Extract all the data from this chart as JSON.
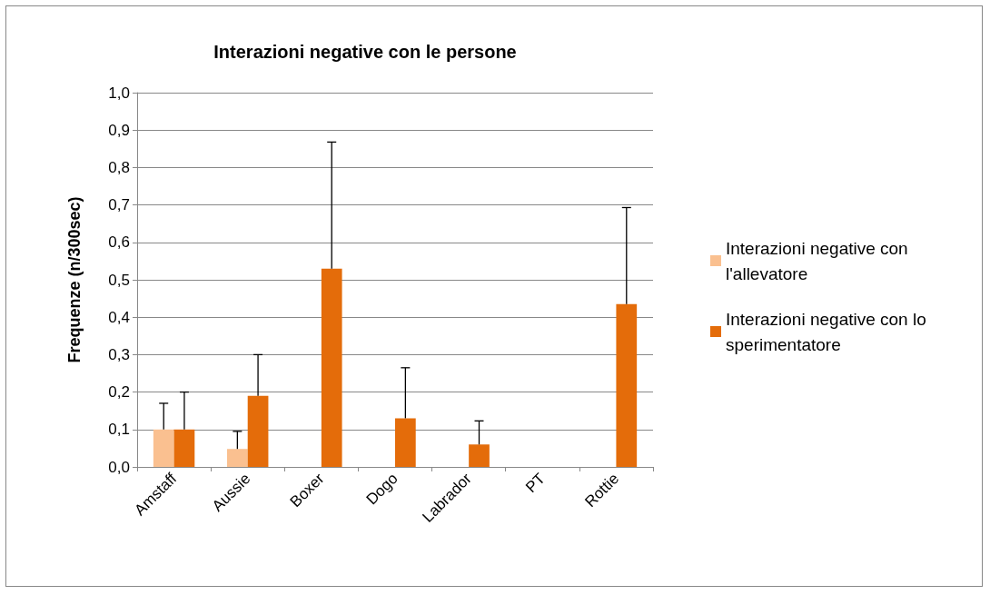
{
  "chart_data": {
    "type": "bar",
    "title": "Interazioni negative con le persone",
    "ylabel": "Frequenze (n/300sec)",
    "categories": [
      "Amstaff",
      "Aussie",
      "Boxer",
      "Dogo",
      "Labrador",
      "PT",
      "Rottie"
    ],
    "series": [
      {
        "name": "Interazioni negative con l'allevatore",
        "color": "#fac090",
        "values": [
          0.1,
          0.048,
          0,
          0,
          0,
          0,
          0
        ],
        "errors": [
          [
            0.1,
            0.17
          ],
          [
            0.048,
            0.095
          ],
          null,
          null,
          null,
          null,
          null
        ]
      },
      {
        "name": "Interazioni negative con lo sperimentatore",
        "color": "#e46c0a",
        "values": [
          0.1,
          0.19,
          0.53,
          0.13,
          0.06,
          0,
          0.435
        ],
        "errors": [
          [
            0.1,
            0.2
          ],
          [
            0.19,
            0.3
          ],
          [
            0.53,
            0.868
          ],
          [
            0.13,
            0.265
          ],
          [
            0.06,
            0.123
          ],
          null,
          [
            0.435,
            0.693
          ]
        ]
      }
    ],
    "ylim": [
      0,
      1
    ],
    "yticks": [
      {
        "value": 0,
        "label": "0,0"
      },
      {
        "value": 0.1,
        "label": "0,1"
      },
      {
        "value": 0.2,
        "label": "0,2"
      },
      {
        "value": 0.3,
        "label": "0,3"
      },
      {
        "value": 0.4,
        "label": "0,4"
      },
      {
        "value": 0.5,
        "label": "0,5"
      },
      {
        "value": 0.6,
        "label": "0,6"
      },
      {
        "value": 0.7,
        "label": "0,7"
      },
      {
        "value": 0.8,
        "label": "0,8"
      },
      {
        "value": 0.9,
        "label": "0,9"
      },
      {
        "value": 1,
        "label": "1,0"
      }
    ],
    "grid": "y",
    "legend": "right"
  }
}
